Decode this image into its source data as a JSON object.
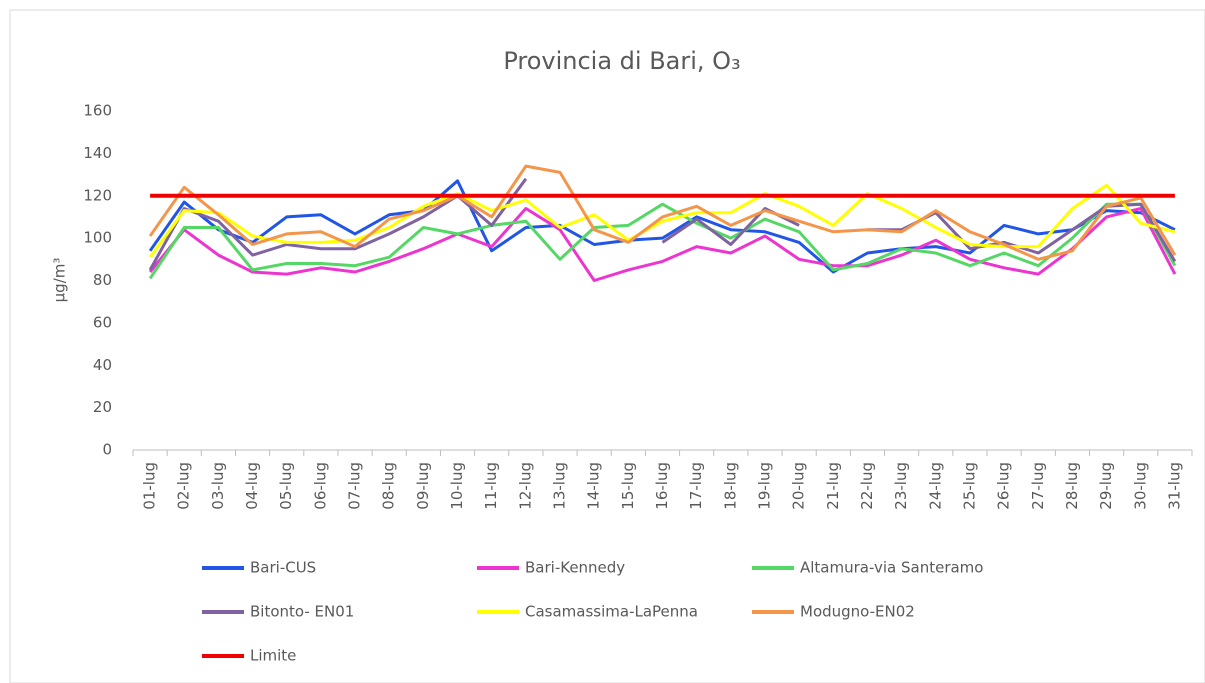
{
  "chart_data": {
    "type": "line",
    "title": "Provincia di Bari, O₃",
    "y_label": "µg/m³",
    "categories": [
      "01-lug",
      "02-lug",
      "03-lug",
      "04-lug",
      "05-lug",
      "06-lug",
      "07-lug",
      "08-lug",
      "09-lug",
      "10-lug",
      "11-lug",
      "12-lug",
      "13-lug",
      "14-lug",
      "15-lug",
      "16-lug",
      "17-lug",
      "18-lug",
      "19-lug",
      "20-lug",
      "21-lug",
      "22-lug",
      "23-lug",
      "24-lug",
      "25-lug",
      "26-lug",
      "27-lug",
      "28-lug",
      "29-lug",
      "30-lug",
      "31-lug"
    ],
    "ylim": [
      0,
      160
    ],
    "yticks": [
      0,
      20,
      40,
      60,
      80,
      100,
      120,
      140,
      160
    ],
    "grid": false,
    "legend": "bottom",
    "series": [
      {
        "name": "Bari-CUS",
        "color": "#2155e8",
        "values": [
          94,
          117,
          104,
          98,
          110,
          111,
          102,
          111,
          113,
          127,
          94,
          105,
          106,
          97,
          99,
          100,
          110,
          104,
          103,
          98,
          84,
          93,
          95,
          96,
          93,
          106,
          102,
          104,
          113,
          112,
          104
        ]
      },
      {
        "name": "Bari-Kennedy",
        "color": "#ec35d0",
        "values": [
          84,
          104,
          92,
          84,
          83,
          86,
          84,
          89,
          95,
          102,
          96,
          114,
          104,
          80,
          85,
          89,
          96,
          93,
          101,
          90,
          87,
          87,
          92,
          99,
          90,
          86,
          83,
          95,
          110,
          114,
          83
        ]
      },
      {
        "name": "Altamura-via Santeramo",
        "color": "#55d766",
        "values": [
          81,
          105,
          105,
          85,
          88,
          88,
          87,
          91,
          105,
          102,
          106,
          108,
          90,
          105,
          106,
          116,
          107,
          100,
          109,
          103,
          85,
          88,
          95,
          93,
          87,
          93,
          87,
          100,
          116,
          116,
          87
        ]
      },
      {
        "name": "Bitonto- EN01",
        "color": "#7f62a0",
        "values": [
          85,
          114,
          108,
          92,
          97,
          95,
          95,
          102,
          110,
          120,
          106,
          128,
          null,
          null,
          null,
          98,
          109,
          97,
          114,
          106,
          null,
          104,
          104,
          112,
          95,
          98,
          93,
          104,
          115,
          116,
          89
        ]
      },
      {
        "name": "Casamassima-LaPenna",
        "color": "#ffff00",
        "values": [
          91,
          113,
          112,
          101,
          98,
          98,
          99,
          105,
          115,
          121,
          113,
          118,
          105,
          111,
          99,
          108,
          112,
          112,
          121,
          115,
          106,
          121,
          114,
          105,
          97,
          96,
          96,
          114,
          125,
          107,
          103
        ]
      },
      {
        "name": "Modugno-EN02",
        "color": "#f4964a",
        "values": [
          101,
          124,
          111,
          97,
          102,
          103,
          96,
          109,
          113,
          120,
          110,
          134,
          131,
          104,
          98,
          110,
          115,
          106,
          113,
          108,
          103,
          104,
          103,
          113,
          103,
          97,
          90,
          94,
          115,
          119,
          92
        ]
      },
      {
        "name": "Limite",
        "color": "#ee0000",
        "values": [
          120,
          120,
          120,
          120,
          120,
          120,
          120,
          120,
          120,
          120,
          120,
          120,
          120,
          120,
          120,
          120,
          120,
          120,
          120,
          120,
          120,
          120,
          120,
          120,
          120,
          120,
          120,
          120,
          120,
          120,
          120
        ]
      }
    ]
  }
}
